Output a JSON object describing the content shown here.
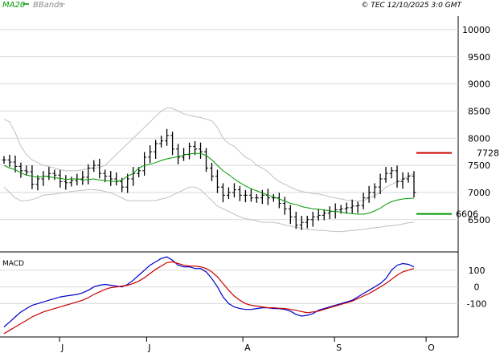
{
  "chart_data": {
    "type": "line",
    "legend": [
      {
        "name": "MA20",
        "color": "#009900"
      },
      {
        "name": "BBands",
        "color": "#c0c0c0"
      }
    ],
    "copyright": "© TEC 12/10/2025 3:0 GMT",
    "price_axis": {
      "ticks": [
        {
          "label": "10000",
          "value": 10000
        },
        {
          "label": "9500",
          "value": 9500
        },
        {
          "label": "9000",
          "value": 9000
        },
        {
          "label": "8500",
          "value": 8500
        },
        {
          "label": "8000",
          "value": 8000
        },
        {
          "label": "7500",
          "value": 7500
        },
        {
          "label": "7000",
          "value": 7000
        },
        {
          "label": "6500",
          "value": 6500
        }
      ],
      "range": [
        5920,
        10250
      ]
    },
    "levels": [
      {
        "label": "7728",
        "value": 7728,
        "color": "#cc0000"
      },
      {
        "label": "6606",
        "value": 6606,
        "color": "#009900"
      }
    ],
    "months": [
      "J",
      "J",
      "A",
      "S",
      "O"
    ],
    "month_positions": [
      0.13,
      0.32,
      0.53,
      0.73,
      0.93
    ],
    "price": [
      7600,
      7560,
      7480,
      7400,
      7380,
      7150,
      7250,
      7300,
      7350,
      7320,
      7200,
      7180,
      7220,
      7250,
      7280,
      7450,
      7500,
      7350,
      7300,
      7250,
      7200,
      7100,
      7250,
      7350,
      7400,
      7650,
      7750,
      7900,
      7950,
      8050,
      7800,
      7650,
      7700,
      7850,
      7800,
      7750,
      7450,
      7300,
      7100,
      6950,
      7000,
      7050,
      6950,
      6950,
      6900,
      6900,
      6950,
      6900,
      6900,
      6800,
      6700,
      6550,
      6400,
      6450,
      6500,
      6550,
      6580,
      6620,
      6650,
      6680,
      6700,
      6720,
      6750,
      6760,
      6900,
      7000,
      7100,
      7250,
      7350,
      7400,
      7200,
      7250,
      7300,
      7000
    ],
    "ma20": [
      7500,
      7450,
      7420,
      7360,
      7320,
      7300,
      7280,
      7300,
      7290,
      7270,
      7260,
      7240,
      7250,
      7250,
      7230,
      7240,
      7250,
      7230,
      7220,
      7210,
      7200,
      7230,
      7300,
      7350,
      7450,
      7500,
      7520,
      7550,
      7590,
      7620,
      7640,
      7660,
      7690,
      7710,
      7720,
      7720,
      7680,
      7600,
      7500,
      7400,
      7330,
      7250,
      7180,
      7120,
      7070,
      7030,
      6990,
      6950,
      6920,
      6880,
      6840,
      6800,
      6780,
      6740,
      6720,
      6700,
      6690,
      6680,
      6660,
      6650,
      6640,
      6620,
      6610,
      6600,
      6600,
      6620,
      6660,
      6710,
      6780,
      6830,
      6860,
      6880,
      6890,
      6895
    ],
    "bb_upper": [
      8350,
      8300,
      8100,
      7850,
      7700,
      7600,
      7550,
      7500,
      7480,
      7450,
      7420,
      7400,
      7400,
      7400,
      7420,
      7440,
      7450,
      7460,
      7500,
      7600,
      7700,
      7800,
      7900,
      8000,
      8100,
      8200,
      8300,
      8400,
      8500,
      8560,
      8550,
      8500,
      8450,
      8420,
      8400,
      8380,
      8350,
      8320,
      8200,
      8000,
      7900,
      7850,
      7750,
      7650,
      7600,
      7500,
      7450,
      7380,
      7280,
      7200,
      7150,
      7100,
      7050,
      7020,
      7000,
      6980,
      6970,
      6950,
      6920,
      6900,
      6880,
      6860,
      6850,
      6840,
      6850,
      6900,
      6950,
      7000,
      7100,
      7150,
      7200,
      7250,
      7300,
      7350
    ],
    "bb_lower": [
      7100,
      7000,
      6900,
      6850,
      6850,
      6870,
      6900,
      6950,
      6960,
      6970,
      6990,
      7000,
      7020,
      7030,
      7040,
      7050,
      7050,
      7040,
      7020,
      6990,
      6950,
      6900,
      6850,
      6850,
      6850,
      6850,
      6850,
      6850,
      6880,
      6900,
      6950,
      7000,
      7050,
      7100,
      7100,
      7050,
      6950,
      6850,
      6750,
      6700,
      6650,
      6600,
      6550,
      6520,
      6500,
      6480,
      6450,
      6450,
      6450,
      6430,
      6400,
      6380,
      6360,
      6340,
      6320,
      6310,
      6300,
      6300,
      6290,
      6280,
      6280,
      6290,
      6300,
      6310,
      6320,
      6340,
      6350,
      6360,
      6380,
      6390,
      6400,
      6420,
      6440,
      6450
    ],
    "macd": {
      "title": "MACD",
      "ticks": [
        {
          "label": "100",
          "value": 100
        },
        {
          "label": "0",
          "value": 0
        },
        {
          "label": "-100",
          "value": -100
        }
      ],
      "range": [
        -300,
        200
      ],
      "macd": [
        -240,
        -210,
        -180,
        -150,
        -130,
        -110,
        -100,
        -90,
        -80,
        -70,
        -60,
        -55,
        -50,
        -45,
        -35,
        -20,
        0,
        10,
        15,
        10,
        5,
        0,
        15,
        40,
        70,
        100,
        130,
        150,
        170,
        180,
        160,
        130,
        120,
        120,
        110,
        110,
        90,
        50,
        0,
        -60,
        -100,
        -120,
        -130,
        -135,
        -135,
        -130,
        -125,
        -125,
        -130,
        -130,
        -135,
        -145,
        -165,
        -175,
        -170,
        -160,
        -140,
        -130,
        -120,
        -110,
        -100,
        -90,
        -80,
        -60,
        -40,
        -20,
        0,
        20,
        50,
        100,
        130,
        140,
        135,
        120
      ],
      "signal": [
        -280,
        -260,
        -240,
        -220,
        -200,
        -180,
        -165,
        -150,
        -140,
        -130,
        -120,
        -110,
        -100,
        -90,
        -80,
        -65,
        -45,
        -30,
        -15,
        -5,
        0,
        5,
        10,
        20,
        35,
        55,
        80,
        105,
        125,
        145,
        150,
        140,
        130,
        125,
        125,
        120,
        110,
        90,
        60,
        20,
        -20,
        -55,
        -80,
        -100,
        -110,
        -115,
        -120,
        -125,
        -125,
        -128,
        -130,
        -135,
        -140,
        -148,
        -155,
        -150,
        -145,
        -135,
        -125,
        -115,
        -105,
        -95,
        -85,
        -70,
        -55,
        -40,
        -20,
        0,
        20,
        45,
        70,
        90,
        100,
        110
      ],
      "colors": {
        "macd": "#0000cc",
        "signal": "#cc0000"
      }
    }
  }
}
